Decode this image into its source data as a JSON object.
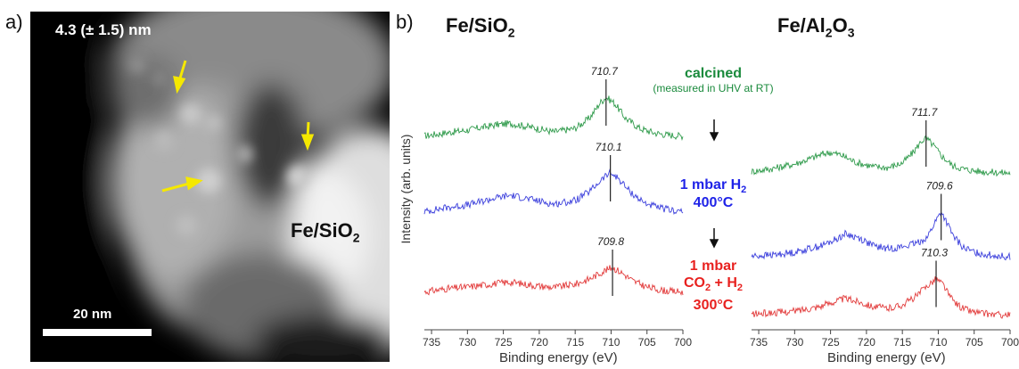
{
  "panel_a": {
    "label": "a)",
    "size_text": "4.3  (± 1.5) nm",
    "sample_main": "Fe/SiO",
    "sample_sub": "2",
    "scale_bar_text": "20 nm",
    "arrow_color": "#f5e800"
  },
  "panel_b": {
    "label": "b)",
    "left_title": {
      "main": "Fe/SiO",
      "sub": "2"
    },
    "right_title": {
      "a": "Fe/Al",
      "sub1": "2",
      "b": "O",
      "sub2": "3"
    },
    "ylabel": "Intensity (arb. units)",
    "xlabel_left": "Binding energy (eV)",
    "xlabel_right": "Binding energy (eV)",
    "conditions": [
      {
        "line1": "calcined",
        "line2": "(measured in UHV at RT)",
        "color": "#1a8a3c"
      },
      {
        "line1": "1 mbar H",
        "line1_sub": "2",
        "line2": "400°C",
        "color": "#1f23e8"
      },
      {
        "line1": "1 mbar",
        "line2": "CO",
        "line2_sub": "2",
        "line2_tail": " + H",
        "line2_sub2": "2",
        "line3": "300°C",
        "color": "#e8211f"
      }
    ]
  },
  "chart_data": [
    {
      "type": "line",
      "title": "Fe/SiO2",
      "xlabel": "Binding energy (eV)",
      "ylabel": "Intensity (arb. units)",
      "xlim": [
        736,
        700
      ],
      "xticks": [
        735,
        730,
        725,
        720,
        715,
        710,
        705,
        700
      ],
      "series": [
        {
          "color": "#2e9a4a",
          "x": [
            736,
            733,
            730,
            726,
            724,
            721,
            718,
            715,
            713,
            711.5,
            710.7,
            709.5,
            708,
            706,
            704,
            702,
            700
          ],
          "y": [
            0.05,
            0.12,
            0.18,
            0.3,
            0.33,
            0.24,
            0.14,
            0.22,
            0.45,
            0.8,
            0.92,
            0.78,
            0.45,
            0.22,
            0.12,
            0.07,
            0.05
          ]
        },
        {
          "color": "#3b3fdc",
          "x": [
            736,
            733,
            730,
            726,
            724,
            721,
            718,
            715,
            713,
            711,
            710.1,
            709,
            707.5,
            705.5,
            703.5,
            701.5,
            700
          ],
          "y": [
            0.05,
            0.14,
            0.2,
            0.36,
            0.42,
            0.32,
            0.22,
            0.3,
            0.5,
            0.82,
            0.92,
            0.8,
            0.52,
            0.26,
            0.14,
            0.08,
            0.06
          ]
        },
        {
          "color": "#e23b3b",
          "x": [
            736,
            733,
            730,
            726,
            724,
            721,
            718,
            715,
            713,
            711,
            709.8,
            708.5,
            707,
            705,
            703,
            701.5,
            700
          ],
          "y": [
            0.05,
            0.12,
            0.16,
            0.24,
            0.27,
            0.2,
            0.15,
            0.22,
            0.34,
            0.52,
            0.6,
            0.48,
            0.3,
            0.16,
            0.09,
            0.06,
            0.05
          ]
        }
      ],
      "annotations": [
        {
          "text": "710.7",
          "x": 710.7,
          "series": 0
        },
        {
          "text": "710.1",
          "x": 710.1,
          "series": 1
        },
        {
          "text": "709.8",
          "x": 709.8,
          "series": 2
        }
      ]
    },
    {
      "type": "line",
      "title": "Fe/Al2O3",
      "xlabel": "Binding energy (eV)",
      "xlim": [
        736,
        700
      ],
      "xticks": [
        735,
        730,
        725,
        720,
        715,
        710,
        705,
        700
      ],
      "series": [
        {
          "color": "#2e9a4a",
          "x": [
            736,
            733,
            730,
            728,
            726,
            725,
            723.5,
            721.5,
            719,
            717,
            715,
            713.5,
            712.3,
            711.7,
            710.8,
            709.5,
            708,
            706,
            704,
            702,
            700
          ],
          "y": [
            0.05,
            0.12,
            0.22,
            0.33,
            0.45,
            0.48,
            0.42,
            0.26,
            0.16,
            0.14,
            0.24,
            0.48,
            0.74,
            0.8,
            0.66,
            0.4,
            0.18,
            0.09,
            0.05,
            0.03,
            0.02
          ]
        },
        {
          "color": "#3b3fdc",
          "x": [
            736,
            733,
            730,
            728,
            726,
            724,
            723,
            721,
            719,
            717,
            715,
            713,
            711.5,
            710.5,
            709.6,
            708.8,
            708,
            706.5,
            705,
            703,
            701,
            700
          ],
          "y": [
            0.05,
            0.08,
            0.14,
            0.22,
            0.3,
            0.45,
            0.55,
            0.46,
            0.28,
            0.22,
            0.26,
            0.34,
            0.48,
            0.8,
            1.05,
            0.8,
            0.52,
            0.24,
            0.14,
            0.08,
            0.05,
            0.04
          ]
        },
        {
          "color": "#e23b3b",
          "x": [
            736,
            733,
            730,
            728,
            726,
            724,
            723,
            721,
            719,
            717,
            715,
            713,
            711.5,
            710.3,
            709.3,
            708.3,
            707,
            705.5,
            704,
            702,
            700
          ],
          "y": [
            0.05,
            0.08,
            0.12,
            0.18,
            0.25,
            0.36,
            0.4,
            0.33,
            0.22,
            0.18,
            0.26,
            0.46,
            0.7,
            0.85,
            0.72,
            0.42,
            0.22,
            0.12,
            0.07,
            0.04,
            0.03
          ]
        }
      ],
      "annotations": [
        {
          "text": "711.7",
          "x": 711.7,
          "series": 0
        },
        {
          "text": "709.6",
          "x": 709.6,
          "series": 1
        },
        {
          "text": "710.3",
          "x": 710.3,
          "series": 2
        }
      ]
    }
  ]
}
